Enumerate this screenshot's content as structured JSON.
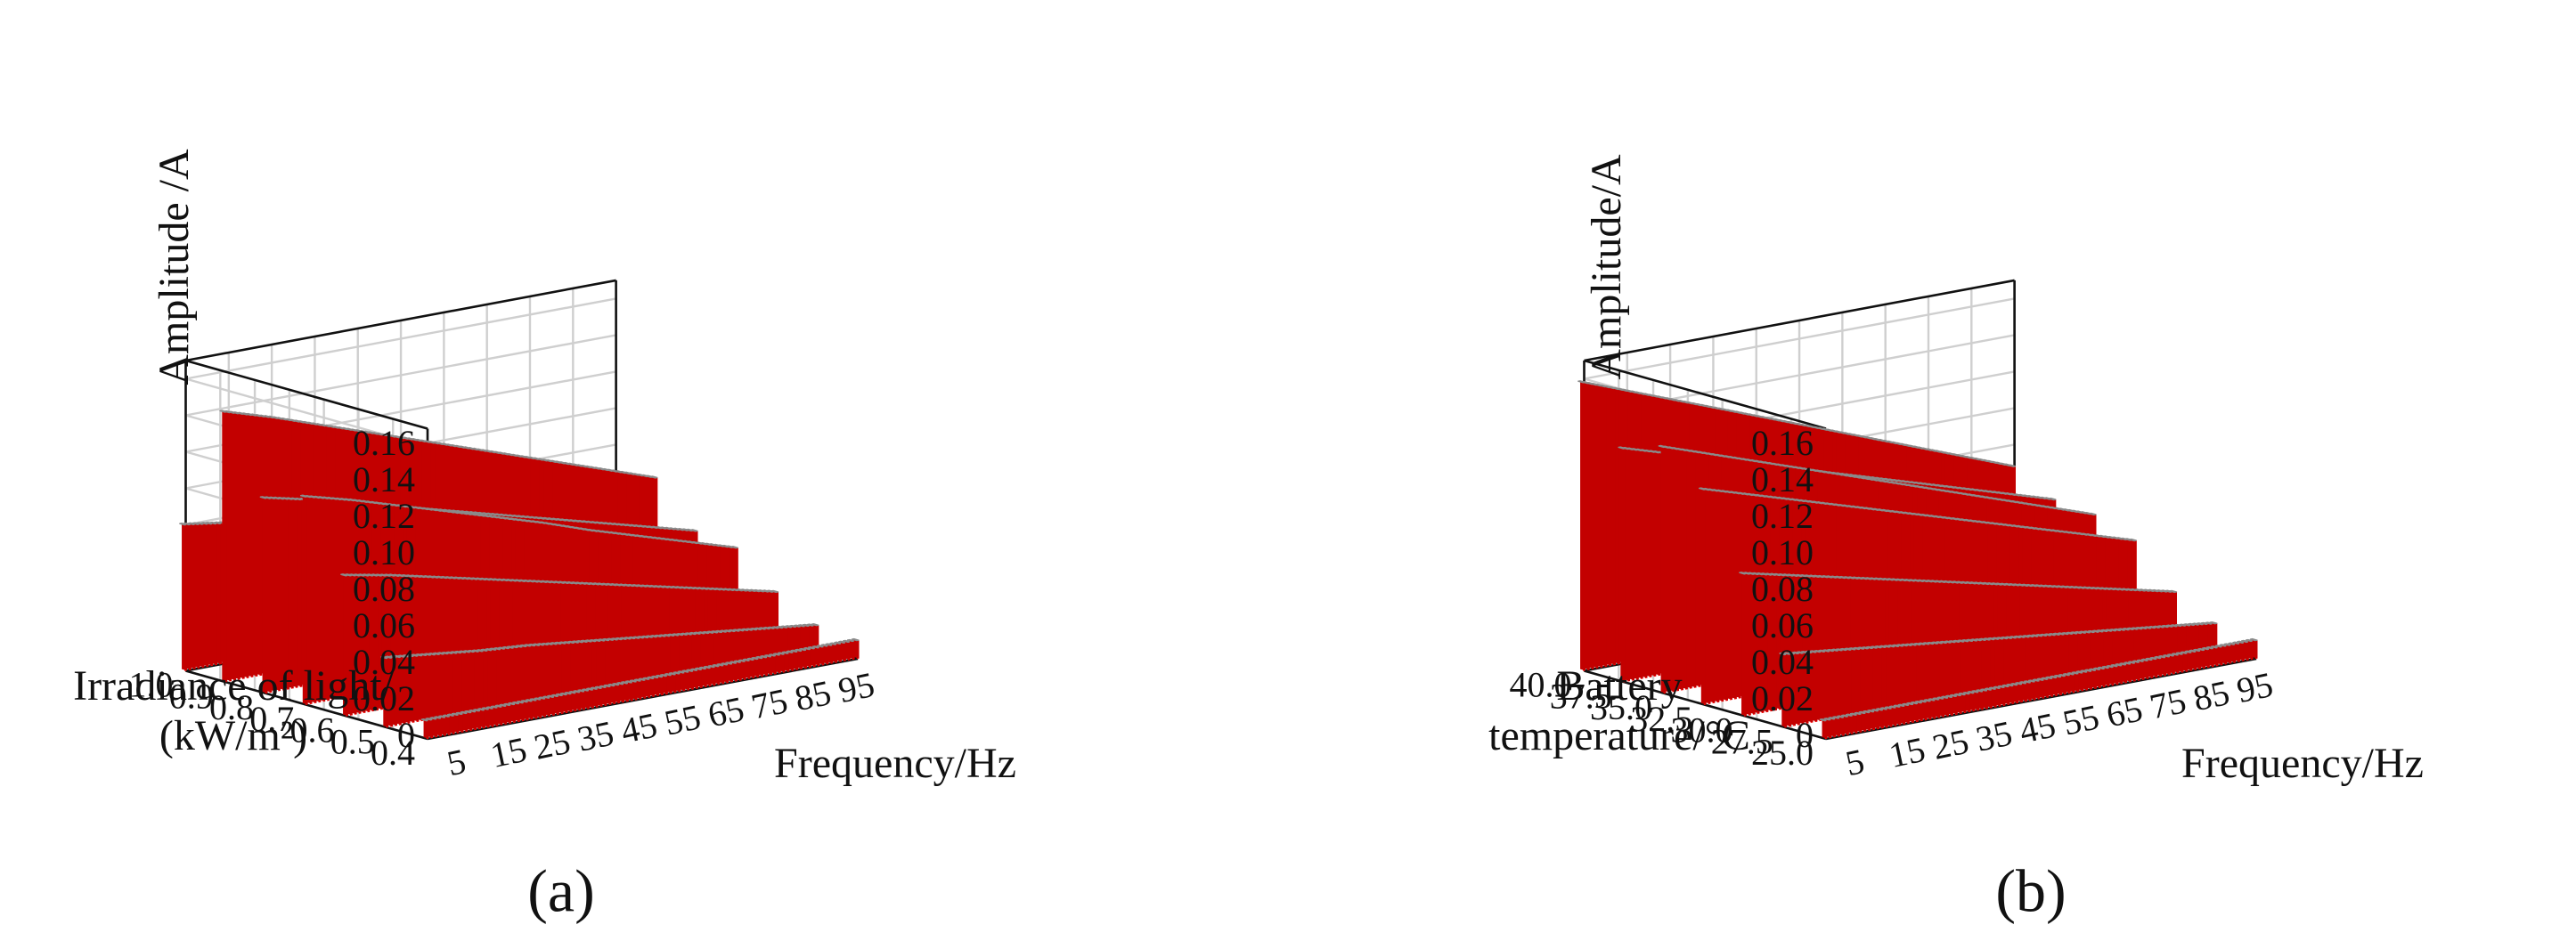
{
  "figure": {
    "colors": {
      "bar": "#ff0000",
      "bar_side": "#c30000",
      "bar_top": "#b4b4b4",
      "grid": "#cfcfcf",
      "frame": "#111111"
    }
  },
  "chart_data": [
    {
      "type": "bar",
      "panel_label": "(a)",
      "zlabel": "Amplitude /A",
      "xlabel": "Frequency/Hz",
      "ylabel_lines": [
        "Irradiance of light/",
        "(kW/m²)"
      ],
      "zlim": [
        0,
        0.17
      ],
      "z_ticks": [
        "0",
        "0.02",
        "0.04",
        "0.06",
        "0.08",
        "0.10",
        "0.12",
        "0.14",
        "0.16"
      ],
      "x_ticks": [
        "5",
        "15",
        "25",
        "35",
        "45",
        "55",
        "65",
        "75",
        "85",
        "95"
      ],
      "y_ticks": [
        "0.4",
        "0.5",
        "0.6",
        "0.7",
        "0.8",
        "0.9",
        "1.0"
      ],
      "frequency_start": 1,
      "frequency_end": 100,
      "series": [
        {
          "name": "0.4",
          "values": [
            0.01,
            0.01,
            0.01,
            0.01,
            0.01,
            0.01,
            0.01,
            0.01,
            0.01,
            0.01
          ]
        },
        {
          "name": "0.5",
          "values": [
            0.038,
            0.035,
            0.032,
            0.03,
            0.027,
            0.024,
            0.021,
            0.018,
            0.015,
            0.012
          ]
        },
        {
          "name": "0.6",
          "values": [
            0.077,
            0.072,
            0.066,
            0.06,
            0.054,
            0.048,
            0.042,
            0.036,
            0.03,
            0.024
          ]
        },
        {
          "name": "0.7",
          "values": [
            0.114,
            0.107,
            0.099,
            0.091,
            0.083,
            0.075,
            0.066,
            0.058,
            0.05,
            0.042
          ]
        },
        {
          "name": "0.8",
          "values": [
            0.107,
            0.101,
            0.094,
            0.087,
            0.08,
            0.073,
            0.066,
            0.059,
            0.052,
            0.045
          ]
        },
        {
          "name": "0.9",
          "values": [
            0.148,
            0.14,
            0.131,
            0.122,
            0.113,
            0.104,
            0.095,
            0.086,
            0.077,
            0.068
          ]
        },
        {
          "name": "1.0",
          "values": [
            0.08,
            0.076,
            0.072,
            0.068,
            0.064,
            0.06,
            0.056,
            0.052,
            0.048,
            0.044
          ]
        }
      ]
    },
    {
      "type": "bar",
      "panel_label": "(b)",
      "zlabel": "Amplitude/A",
      "xlabel": "Frequency/Hz",
      "ylabel_lines": [
        "Battery",
        "temperature/°C"
      ],
      "zlim": [
        0,
        0.17
      ],
      "z_ticks": [
        "0",
        "0.02",
        "0.04",
        "0.06",
        "0.08",
        "0.10",
        "0.12",
        "0.14",
        "0.16"
      ],
      "x_ticks": [
        "5",
        "15",
        "25",
        "35",
        "45",
        "55",
        "65",
        "75",
        "85",
        "95"
      ],
      "y_ticks": [
        "25.0",
        "27.5",
        "30.0",
        "32.5",
        "35.0",
        "37.5",
        "40.0"
      ],
      "frequency_start": 1,
      "frequency_end": 100,
      "series": [
        {
          "name": "25.0",
          "values": [
            0.01,
            0.01,
            0.01,
            0.01,
            0.01,
            0.01,
            0.01,
            0.01,
            0.01,
            0.01
          ]
        },
        {
          "name": "27.5",
          "values": [
            0.04,
            0.037,
            0.034,
            0.031,
            0.028,
            0.025,
            0.022,
            0.019,
            0.016,
            0.013
          ]
        },
        {
          "name": "30.0",
          "values": [
            0.078,
            0.072,
            0.066,
            0.06,
            0.054,
            0.048,
            0.042,
            0.036,
            0.03,
            0.024
          ]
        },
        {
          "name": "32.5",
          "values": [
            0.118,
            0.11,
            0.102,
            0.094,
            0.086,
            0.078,
            0.07,
            0.062,
            0.054,
            0.046
          ]
        },
        {
          "name": "35.0",
          "values": [
            0.135,
            0.126,
            0.117,
            0.108,
            0.099,
            0.09,
            0.081,
            0.072,
            0.063,
            0.054
          ]
        },
        {
          "name": "37.5",
          "values": [
            0.128,
            0.12,
            0.112,
            0.104,
            0.096,
            0.088,
            0.08,
            0.072,
            0.064,
            0.056
          ]
        },
        {
          "name": "40.0",
          "values": [
            0.158,
            0.148,
            0.138,
            0.128,
            0.118,
            0.108,
            0.098,
            0.088,
            0.078,
            0.068
          ]
        }
      ]
    }
  ]
}
